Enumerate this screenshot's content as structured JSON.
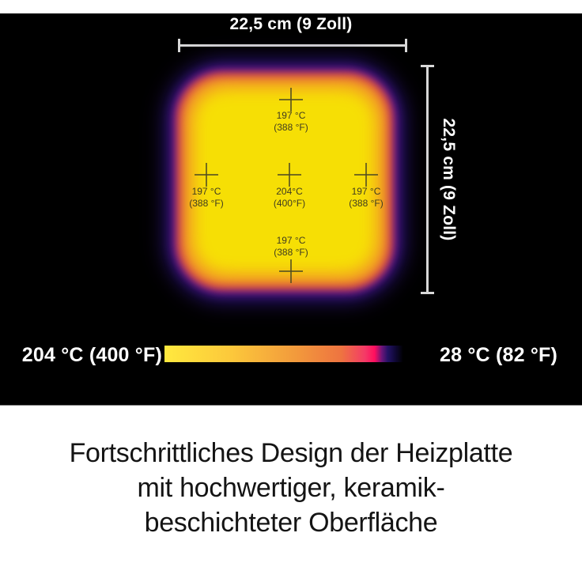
{
  "panel": {
    "top_dimension": "22,5 cm (9 Zoll)",
    "right_dimension": "22,5 cm (9 Zoll)",
    "markers": {
      "top": {
        "temp": "197 °C",
        "fahrenheit": "(388 °F)"
      },
      "left": {
        "temp": "197 °C",
        "fahrenheit": "(388 °F)"
      },
      "center": {
        "temp": "204°C",
        "fahrenheit": "(400°F)"
      },
      "right": {
        "temp": "197 °C",
        "fahrenheit": "(388 °F)"
      },
      "bottom": {
        "temp": "197 °C",
        "fahrenheit": "(388 °F)"
      }
    },
    "scale": {
      "hot_label": "204 °C (400 °F)",
      "cold_label": "28 °C (82 °F)"
    },
    "colors": {
      "plate_core": "#f6df05",
      "plate_orange": "#f18c2b",
      "plate_red": "#c72553",
      "plate_purple": "#5d1590",
      "plate_indigo": "#20105a",
      "background": "#000000"
    }
  },
  "caption": {
    "line1": "Fortschrittliches Design der Heizplatte",
    "line2": "mit hochwertiger, keramik-",
    "line3": "beschichteter Oberfläche"
  }
}
